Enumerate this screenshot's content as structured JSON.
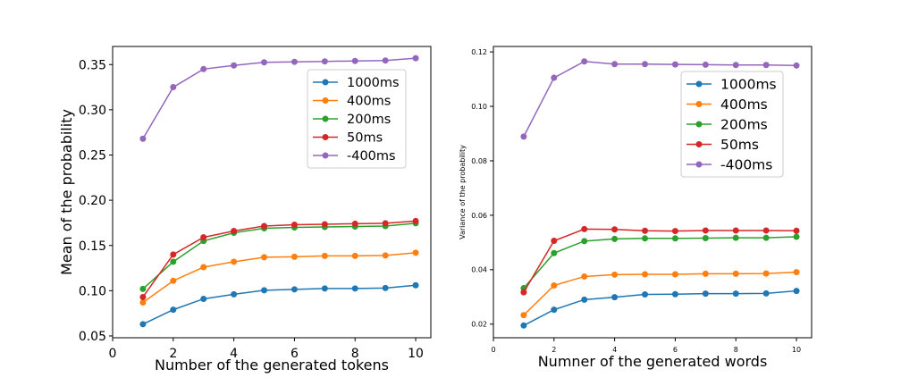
{
  "chart_data": [
    {
      "type": "line",
      "title": "",
      "xlabel": "Number of the generated tokens",
      "ylabel": "Mean of the probability",
      "xlim": [
        0,
        10.5
      ],
      "ylim": [
        0.048,
        0.37
      ],
      "xticks": [
        "0",
        "2",
        "4",
        "6",
        "8",
        "10"
      ],
      "yticks": [
        "0.05",
        "0.10",
        "0.15",
        "0.20",
        "0.25",
        "0.30",
        "0.35"
      ],
      "grid": false,
      "legend": "upper-right",
      "x": [
        1,
        2,
        3,
        4,
        5,
        6,
        7,
        8,
        9,
        10
      ],
      "series": [
        {
          "name": "1000ms",
          "color": "#1f77b4",
          "values": [
            0.063,
            0.079,
            0.091,
            0.096,
            0.1005,
            0.1015,
            0.1025,
            0.1025,
            0.103,
            0.106
          ]
        },
        {
          "name": "400ms",
          "color": "#ff7f0e",
          "values": [
            0.087,
            0.111,
            0.126,
            0.132,
            0.137,
            0.1375,
            0.1385,
            0.1385,
            0.139,
            0.142
          ]
        },
        {
          "name": "200ms",
          "color": "#2ca02c",
          "values": [
            0.102,
            0.132,
            0.155,
            0.164,
            0.169,
            0.17,
            0.1705,
            0.171,
            0.1715,
            0.1745
          ]
        },
        {
          "name": "50ms",
          "color": "#d62728",
          "values": [
            0.093,
            0.14,
            0.159,
            0.166,
            0.1715,
            0.173,
            0.1735,
            0.174,
            0.1745,
            0.177
          ]
        },
        {
          "name": "-400ms",
          "color": "#9467bd",
          "values": [
            0.268,
            0.325,
            0.345,
            0.349,
            0.3525,
            0.353,
            0.3535,
            0.354,
            0.3545,
            0.357
          ]
        }
      ]
    },
    {
      "type": "line",
      "title": "",
      "xlabel": "Numner of the generated words",
      "ylabel": "Variance of the probability",
      "xlim": [
        0,
        10.5
      ],
      "ylim": [
        0.015,
        0.122
      ],
      "xticks": [
        "0",
        "2",
        "4",
        "6",
        "8",
        "10"
      ],
      "yticks": [
        "0.02",
        "0.04",
        "0.06",
        "0.08",
        "0.10",
        "0.12"
      ],
      "grid": false,
      "legend": "upper-right",
      "x": [
        1,
        2,
        3,
        4,
        5,
        6,
        7,
        8,
        9,
        10
      ],
      "series": [
        {
          "name": "1000ms",
          "color": "#1f77b4",
          "values": [
            0.0195,
            0.0253,
            0.029,
            0.0299,
            0.0309,
            0.031,
            0.0312,
            0.0312,
            0.0313,
            0.0322
          ]
        },
        {
          "name": "400ms",
          "color": "#ff7f0e",
          "values": [
            0.0233,
            0.0342,
            0.0375,
            0.0382,
            0.0383,
            0.0383,
            0.0385,
            0.0385,
            0.0386,
            0.0391
          ]
        },
        {
          "name": "200ms",
          "color": "#2ca02c",
          "values": [
            0.0332,
            0.0461,
            0.0505,
            0.0513,
            0.0515,
            0.0515,
            0.0516,
            0.0517,
            0.0517,
            0.0521
          ]
        },
        {
          "name": "50ms",
          "color": "#d62728",
          "values": [
            0.0317,
            0.0506,
            0.0549,
            0.0548,
            0.0543,
            0.0542,
            0.0544,
            0.0544,
            0.0544,
            0.0543
          ]
        },
        {
          "name": "-400ms",
          "color": "#9467bd",
          "values": [
            0.0889,
            0.1105,
            0.1165,
            0.1155,
            0.1155,
            0.1154,
            0.1153,
            0.1152,
            0.1152,
            0.115
          ]
        }
      ]
    }
  ]
}
